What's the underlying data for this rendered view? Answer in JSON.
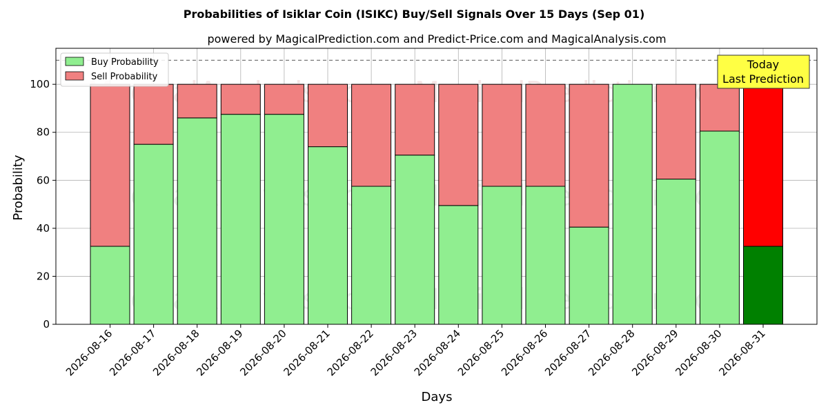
{
  "chart_data": {
    "type": "bar",
    "stacked": true,
    "title": "Probabilities of Isiklar Coin (ISIKC) Buy/Sell Signals Over 15 Days (Sep 01)",
    "subtitle": "powered by MagicalPrediction.com and Predict-Price.com and MagicalAnalysis.com",
    "xlabel": "Days",
    "ylabel": "Probability",
    "ylim": [
      0,
      115
    ],
    "yticks": [
      0,
      20,
      40,
      60,
      80,
      100
    ],
    "grid": true,
    "legend_position": "top-left",
    "reference_line": 110,
    "categories": [
      "2026-08-16",
      "2026-08-17",
      "2026-08-18",
      "2026-08-19",
      "2026-08-20",
      "2026-08-21",
      "2026-08-22",
      "2026-08-23",
      "2026-08-24",
      "2026-08-25",
      "2026-08-26",
      "2026-08-27",
      "2026-08-28",
      "2026-08-29",
      "2026-08-30",
      "2026-08-31"
    ],
    "series": [
      {
        "name": "Buy Probability",
        "color": "#90ee90",
        "today_color": "#008000",
        "values": [
          32.5,
          75,
          86,
          87.5,
          87.5,
          74,
          57.5,
          70.5,
          49.5,
          57.5,
          57.5,
          40.5,
          100,
          60.5,
          80.5,
          32.5
        ]
      },
      {
        "name": "Sell Probability",
        "color": "#f08080",
        "today_color": "#ff0000",
        "values": [
          67.5,
          25,
          14,
          12.5,
          12.5,
          26,
          42.5,
          29.5,
          50.5,
          42.5,
          42.5,
          59.5,
          0,
          39.5,
          19.5,
          67.5
        ]
      }
    ],
    "annotation": {
      "line1": "Today",
      "line2": "Last Prediction",
      "color": "#ffff44"
    },
    "watermarks": [
      "MagicalAnalysis.com",
      "MagicalPrediction.com"
    ]
  }
}
